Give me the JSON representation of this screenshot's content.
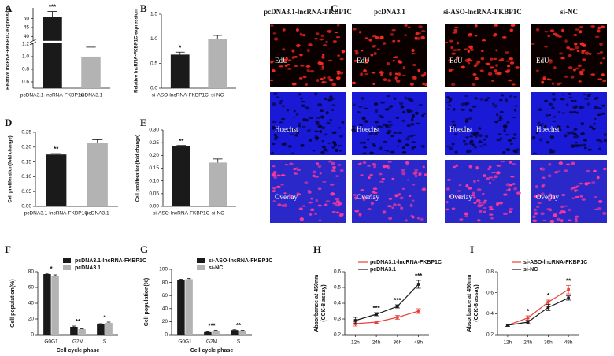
{
  "chart_data": [
    {
      "type": "bar",
      "panel": "A",
      "ylabel": "Relative lncRNA-FKBP1C expression",
      "categories": [
        "pcDNA3.1-lncRNA-FKBP1C",
        "pcDNA3.1"
      ],
      "values": [
        51,
        1.0
      ],
      "errors": [
        3,
        0.15
      ],
      "colors": [
        "#1a1a1a",
        "#b3b3b3"
      ],
      "significance": [
        "***",
        null
      ],
      "ylim": [
        0.5,
        1.2
      ],
      "ylim_upper": [
        38,
        56
      ],
      "yticks": [
        0.6,
        0.8,
        {
          "value": 1.0,
          "label": "1.0"
        },
        1.2,
        40,
        45,
        50
      ]
    },
    {
      "type": "bar",
      "panel": "B",
      "ylabel": "Relative lncRNA-FKBP1C expression",
      "categories": [
        "si-ASO-lncRNA-FKBP1C",
        "si-NC"
      ],
      "values": [
        0.68,
        1.0
      ],
      "errors": [
        0.05,
        0.07
      ],
      "colors": [
        "#1a1a1a",
        "#b3b3b3"
      ],
      "significance": [
        "*",
        null
      ],
      "ylim": [
        0,
        1.5
      ],
      "yticks": [
        {
          "value": 0,
          "label": "0.0"
        },
        0.5,
        {
          "value": 1,
          "label": "1.0"
        },
        1.5
      ]
    },
    {
      "type": "bar",
      "panel": "D",
      "ylabel": "Cell proliferation(fold change)",
      "categories": [
        "pcDNA3.1-lncRNA-FKBP1C",
        "pcDNA3.1"
      ],
      "values": [
        0.175,
        0.215
      ],
      "errors": [
        0.003,
        0.01
      ],
      "colors": [
        "#1a1a1a",
        "#b3b3b3"
      ],
      "significance": [
        "**",
        null
      ],
      "ylim": [
        0,
        0.25
      ],
      "yticks": [
        {
          "value": 0,
          "label": "0.00"
        },
        0.05,
        {
          "value": 0.1,
          "label": "0.10"
        },
        0.15,
        {
          "value": 0.2,
          "label": "0.20"
        },
        0.25
      ]
    },
    {
      "type": "bar",
      "panel": "E",
      "ylabel": "Cell proliferation(fold change)",
      "categories": [
        "si-ASO-lncRNA-FKBP1C",
        "si-NC"
      ],
      "values": [
        0.235,
        0.172
      ],
      "errors": [
        0.004,
        0.014
      ],
      "colors": [
        "#1a1a1a",
        "#b3b3b3"
      ],
      "significance": [
        "**",
        null
      ],
      "ylim": [
        0,
        0.3
      ],
      "yticks": [
        {
          "value": 0,
          "label": "0.00"
        },
        0.05,
        {
          "value": 0.1,
          "label": "0.10"
        },
        0.15,
        {
          "value": 0.2,
          "label": "0.20"
        },
        0.25,
        {
          "value": 0.3,
          "label": "0.30"
        }
      ]
    },
    {
      "type": "bar",
      "panel": "F",
      "xlabel": "Cell cycle phase",
      "ylabel": "Cell population(%)",
      "categories": [
        "G0G1",
        "G2M",
        "S"
      ],
      "series": [
        {
          "name": "pcDNA3.1-lncRNA-FKBP1C",
          "color": "#1a1a1a",
          "values": [
            77,
            10,
            13
          ],
          "errors": [
            1,
            1,
            1
          ]
        },
        {
          "name": "pcDNA3.1",
          "color": "#b3b3b3",
          "values": [
            75,
            7,
            15
          ],
          "errors": [
            1,
            0.5,
            1
          ]
        }
      ],
      "significance": [
        "*",
        "**",
        "*"
      ],
      "ylim": [
        0,
        80
      ],
      "yticks": [
        0,
        20,
        40,
        60,
        80
      ]
    },
    {
      "type": "bar",
      "panel": "G",
      "xlabel": "Cell cycle phase",
      "ylabel": "Cell population(%)",
      "categories": [
        "G0G1",
        "G2M",
        "S"
      ],
      "series": [
        {
          "name": "si-ASO-lncRNA-FKBP1C",
          "color": "#1a1a1a",
          "values": [
            84,
            5,
            7
          ],
          "errors": [
            1,
            0.5,
            0.5
          ]
        },
        {
          "name": "si-NC",
          "color": "#b3b3b3",
          "values": [
            85,
            6,
            6
          ],
          "errors": [
            1,
            0.5,
            0.5
          ]
        }
      ],
      "significance": [
        null,
        "***",
        "**"
      ],
      "ylim": [
        0,
        100
      ],
      "yticks": [
        0,
        20,
        40,
        60,
        80,
        100
      ]
    },
    {
      "type": "line",
      "panel": "H",
      "ylabel": [
        "Absorbance at 450nm",
        "(CCK-8 assay)"
      ],
      "categories": [
        "12h",
        "24h",
        "36h",
        "48h"
      ],
      "series": [
        {
          "name": "pcDNA3.1-lncRNA-FKBP1C",
          "color": "#e8423a",
          "values": [
            0.27,
            0.28,
            0.31,
            0.35
          ],
          "errors": [
            0.015,
            0.008,
            0.012,
            0.015
          ]
        },
        {
          "name": "pcDNA3.1",
          "color": "#1a1a1a",
          "values": [
            0.29,
            0.33,
            0.38,
            0.52
          ],
          "errors": [
            0.02,
            0.01,
            0.01,
            0.025
          ]
        }
      ],
      "significance": [
        null,
        "***",
        "***",
        "***"
      ],
      "ylim": [
        0.2,
        0.6
      ],
      "yticks": [
        0.2,
        0.3,
        0.4,
        0.5,
        0.6
      ]
    },
    {
      "type": "line",
      "panel": "I",
      "ylabel": [
        "Absorbance at 450nm",
        "(CCK-8 assay)"
      ],
      "categories": [
        "12h",
        "24h",
        "36h",
        "48h"
      ],
      "series": [
        {
          "name": "si-ASO-lncRNA-FKBP1C",
          "color": "#e8423a",
          "values": [
            0.29,
            0.36,
            0.51,
            0.63
          ],
          "errors": [
            0.01,
            0.02,
            0.02,
            0.04
          ]
        },
        {
          "name": "si-NC",
          "color": "#1a1a1a",
          "values": [
            0.29,
            0.32,
            0.46,
            0.55
          ],
          "errors": [
            0.01,
            0.015,
            0.03,
            0.02
          ]
        }
      ],
      "significance": [
        null,
        "*",
        "*",
        "**"
      ],
      "ylim": [
        0.2,
        0.8
      ],
      "yticks": [
        0.2,
        0.4,
        0.6,
        0.8
      ]
    }
  ],
  "figure_c": {
    "panel": "C",
    "columns": [
      "pcDNA3.1-lncRNA-FKBP1C",
      "pcDNA3.1",
      "si-ASO-lncRNA-FKBP1C",
      "si-NC"
    ],
    "rows": [
      "EdU",
      "Hoechst",
      "Overlay"
    ]
  }
}
